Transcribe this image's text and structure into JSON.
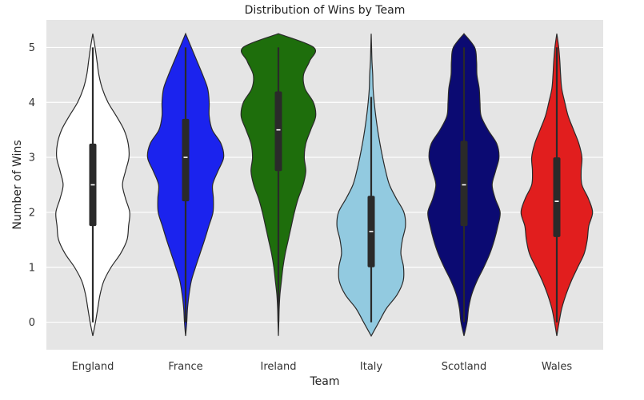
{
  "chart_data": {
    "type": "violin",
    "title": "Distribution of Wins by Team",
    "xlabel": "Team",
    "ylabel": "Number of Wins",
    "ylim": [
      -0.5,
      5.5
    ],
    "yticks": [
      0,
      1,
      2,
      3,
      4,
      5
    ],
    "grid": true,
    "background": "#e5e5e5",
    "categories": [
      "England",
      "France",
      "Ireland",
      "Italy",
      "Scotland",
      "Wales"
    ],
    "series": [
      {
        "category": "England",
        "color": "#ffffff",
        "y_min": -0.25,
        "y_max": 5.25,
        "whisker": [
          0,
          5
        ],
        "box": [
          1.75,
          3.25
        ],
        "median": 2.5,
        "density": [
          [
            -0.25,
            0.0
          ],
          [
            0.0,
            0.07
          ],
          [
            0.25,
            0.13
          ],
          [
            0.5,
            0.19
          ],
          [
            0.75,
            0.29
          ],
          [
            1.0,
            0.48
          ],
          [
            1.25,
            0.73
          ],
          [
            1.5,
            0.9
          ],
          [
            1.75,
            0.94
          ],
          [
            2.0,
            0.97
          ],
          [
            2.25,
            0.86
          ],
          [
            2.5,
            0.78
          ],
          [
            2.75,
            0.86
          ],
          [
            3.0,
            0.95
          ],
          [
            3.25,
            0.93
          ],
          [
            3.5,
            0.82
          ],
          [
            3.75,
            0.62
          ],
          [
            4.0,
            0.4
          ],
          [
            4.25,
            0.25
          ],
          [
            4.5,
            0.16
          ],
          [
            4.75,
            0.11
          ],
          [
            5.0,
            0.06
          ],
          [
            5.25,
            0.0
          ]
        ]
      },
      {
        "category": "France",
        "color": "#1b23ee",
        "y_min": -0.25,
        "y_max": 5.25,
        "whisker": [
          0,
          5
        ],
        "box": [
          2.2,
          3.7
        ],
        "median": 3.0,
        "density": [
          [
            -0.25,
            0.0
          ],
          [
            0.0,
            0.03
          ],
          [
            0.25,
            0.05
          ],
          [
            0.5,
            0.09
          ],
          [
            0.75,
            0.15
          ],
          [
            1.0,
            0.26
          ],
          [
            1.25,
            0.38
          ],
          [
            1.5,
            0.5
          ],
          [
            1.75,
            0.61
          ],
          [
            2.0,
            0.72
          ],
          [
            2.25,
            0.73
          ],
          [
            2.5,
            0.71
          ],
          [
            2.75,
            0.85
          ],
          [
            3.0,
            1.0
          ],
          [
            3.25,
            0.93
          ],
          [
            3.5,
            0.7
          ],
          [
            3.75,
            0.62
          ],
          [
            4.0,
            0.62
          ],
          [
            4.25,
            0.58
          ],
          [
            4.5,
            0.45
          ],
          [
            4.75,
            0.3
          ],
          [
            5.0,
            0.15
          ],
          [
            5.25,
            0.0
          ]
        ]
      },
      {
        "category": "Ireland",
        "color": "#1e6e0c",
        "y_min": -0.25,
        "y_max": 5.25,
        "whisker": [
          0,
          5
        ],
        "box": [
          2.75,
          4.2
        ],
        "median": 3.5,
        "density": [
          [
            -0.25,
            0.0
          ],
          [
            0.0,
            0.01
          ],
          [
            0.25,
            0.02
          ],
          [
            0.5,
            0.04
          ],
          [
            0.75,
            0.08
          ],
          [
            1.0,
            0.12
          ],
          [
            1.25,
            0.18
          ],
          [
            1.5,
            0.26
          ],
          [
            1.75,
            0.34
          ],
          [
            2.0,
            0.42
          ],
          [
            2.25,
            0.52
          ],
          [
            2.5,
            0.65
          ],
          [
            2.75,
            0.72
          ],
          [
            3.0,
            0.68
          ],
          [
            3.25,
            0.72
          ],
          [
            3.5,
            0.85
          ],
          [
            3.75,
            0.98
          ],
          [
            4.0,
            0.92
          ],
          [
            4.25,
            0.7
          ],
          [
            4.5,
            0.66
          ],
          [
            4.75,
            0.82
          ],
          [
            5.0,
            0.93
          ],
          [
            5.25,
            0.0
          ]
        ]
      },
      {
        "category": "Italy",
        "color": "#92cae0",
        "y_min": -0.25,
        "y_max": 5.25,
        "whisker": [
          0,
          4.1
        ],
        "box": [
          1.0,
          2.3
        ],
        "median": 1.65,
        "density": [
          [
            -0.25,
            0.0
          ],
          [
            0.0,
            0.2
          ],
          [
            0.25,
            0.4
          ],
          [
            0.5,
            0.68
          ],
          [
            0.75,
            0.84
          ],
          [
            1.0,
            0.85
          ],
          [
            1.25,
            0.78
          ],
          [
            1.5,
            0.82
          ],
          [
            1.75,
            0.9
          ],
          [
            2.0,
            0.86
          ],
          [
            2.25,
            0.66
          ],
          [
            2.5,
            0.48
          ],
          [
            2.75,
            0.38
          ],
          [
            3.0,
            0.3
          ],
          [
            3.25,
            0.23
          ],
          [
            3.5,
            0.17
          ],
          [
            3.75,
            0.12
          ],
          [
            4.0,
            0.08
          ],
          [
            4.25,
            0.05
          ],
          [
            4.5,
            0.04
          ],
          [
            4.75,
            0.02
          ],
          [
            5.0,
            0.01
          ],
          [
            5.25,
            0.0
          ]
        ]
      },
      {
        "category": "Scotland",
        "color": "#0b0a72",
        "y_min": -0.25,
        "y_max": 5.25,
        "whisker": [
          0,
          5
        ],
        "box": [
          1.75,
          3.3
        ],
        "median": 2.5,
        "density": [
          [
            -0.25,
            0.0
          ],
          [
            0.0,
            0.08
          ],
          [
            0.25,
            0.12
          ],
          [
            0.5,
            0.2
          ],
          [
            0.75,
            0.34
          ],
          [
            1.0,
            0.52
          ],
          [
            1.25,
            0.68
          ],
          [
            1.5,
            0.8
          ],
          [
            1.75,
            0.89
          ],
          [
            2.0,
            0.95
          ],
          [
            2.25,
            0.82
          ],
          [
            2.5,
            0.74
          ],
          [
            2.75,
            0.83
          ],
          [
            3.0,
            0.92
          ],
          [
            3.25,
            0.86
          ],
          [
            3.5,
            0.63
          ],
          [
            3.75,
            0.45
          ],
          [
            4.0,
            0.42
          ],
          [
            4.25,
            0.4
          ],
          [
            4.5,
            0.34
          ],
          [
            4.75,
            0.33
          ],
          [
            5.0,
            0.28
          ],
          [
            5.25,
            0.0
          ]
        ]
      },
      {
        "category": "Wales",
        "color": "#e11e1e",
        "y_min": -0.25,
        "y_max": 5.25,
        "whisker": [
          0,
          5
        ],
        "box": [
          1.55,
          3.0
        ],
        "median": 2.2,
        "density": [
          [
            -0.25,
            0.0
          ],
          [
            0.0,
            0.06
          ],
          [
            0.25,
            0.13
          ],
          [
            0.5,
            0.24
          ],
          [
            0.75,
            0.38
          ],
          [
            1.0,
            0.55
          ],
          [
            1.25,
            0.72
          ],
          [
            1.5,
            0.8
          ],
          [
            1.75,
            0.84
          ],
          [
            2.0,
            0.94
          ],
          [
            2.25,
            0.83
          ],
          [
            2.5,
            0.66
          ],
          [
            2.75,
            0.64
          ],
          [
            3.0,
            0.66
          ],
          [
            3.25,
            0.58
          ],
          [
            3.5,
            0.44
          ],
          [
            3.75,
            0.3
          ],
          [
            4.0,
            0.21
          ],
          [
            4.25,
            0.13
          ],
          [
            4.5,
            0.1
          ],
          [
            4.75,
            0.08
          ],
          [
            5.0,
            0.05
          ],
          [
            5.25,
            0.0
          ]
        ]
      }
    ]
  }
}
